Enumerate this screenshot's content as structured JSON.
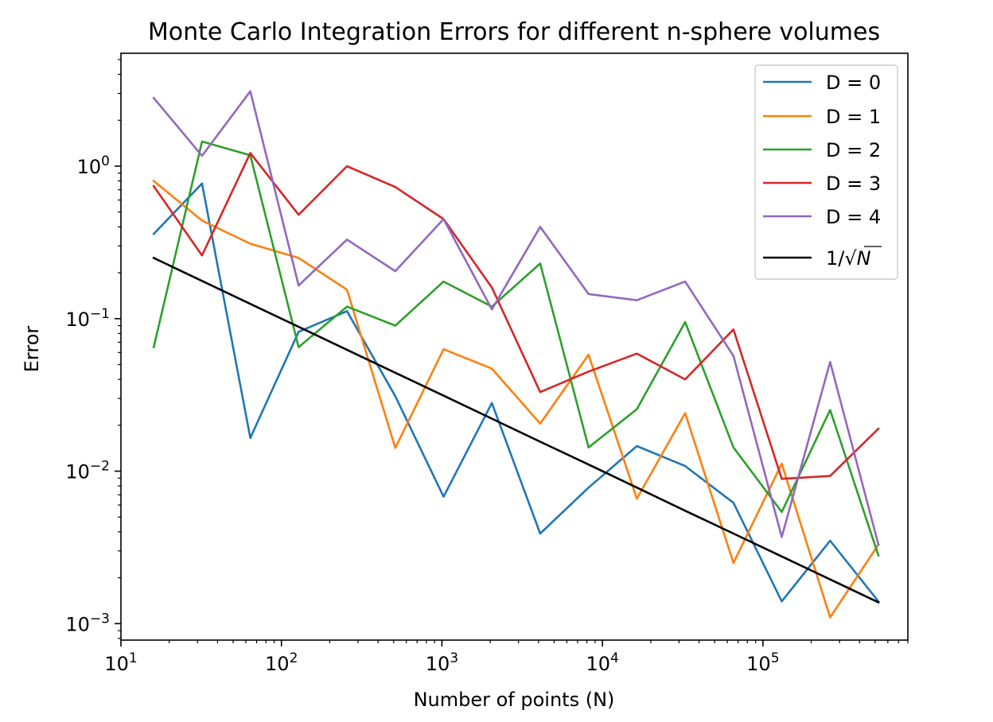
{
  "chart_data": {
    "type": "line",
    "title": "Monte Carlo Integration Errors for different n-sphere volumes",
    "xlabel": "Number of points (N)",
    "ylabel": "Error",
    "xscale": "log",
    "yscale": "log",
    "xlim": [
      10,
      800000
    ],
    "ylim": [
      0.00078,
      5.5
    ],
    "legend_location": "upper right",
    "grid": false,
    "x_ticks": [
      {
        "value": 10,
        "base": "10",
        "exp": "1"
      },
      {
        "value": 100,
        "base": "10",
        "exp": "2"
      },
      {
        "value": 1000,
        "base": "10",
        "exp": "3"
      },
      {
        "value": 10000,
        "base": "10",
        "exp": "4"
      },
      {
        "value": 100000,
        "base": "10",
        "exp": "5"
      }
    ],
    "y_ticks": [
      {
        "value": 1,
        "base": "10",
        "exp": "0"
      },
      {
        "value": 0.1,
        "base": "10",
        "exp": "−1"
      },
      {
        "value": 0.01,
        "base": "10",
        "exp": "−2"
      },
      {
        "value": 0.001,
        "base": "10",
        "exp": "−3"
      }
    ],
    "x": [
      16,
      32,
      64,
      128,
      256,
      512,
      1024,
      2048,
      4096,
      8192,
      16384,
      32768,
      65536,
      131072,
      262144,
      524288
    ],
    "series": [
      {
        "name": "D = 0",
        "color": "#1f77b4",
        "values": [
          0.36,
          0.77,
          0.0165,
          0.082,
          0.112,
          0.031,
          0.0068,
          0.028,
          0.0039,
          0.0078,
          0.0146,
          0.0108,
          0.0062,
          0.0014,
          0.0035,
          0.0014
        ]
      },
      {
        "name": "D = 1",
        "color": "#ff7f0e",
        "values": [
          0.8,
          0.44,
          0.31,
          0.25,
          0.155,
          0.0142,
          0.063,
          0.047,
          0.0205,
          0.058,
          0.0066,
          0.024,
          0.0025,
          0.0112,
          0.0011,
          0.0033
        ]
      },
      {
        "name": "D = 2",
        "color": "#2ca02c",
        "values": [
          0.065,
          1.45,
          1.18,
          0.065,
          0.12,
          0.09,
          0.175,
          0.12,
          0.23,
          0.0143,
          0.0255,
          0.095,
          0.0143,
          0.0054,
          0.0252,
          0.0028
        ]
      },
      {
        "name": "D = 3",
        "color": "#d62728",
        "values": [
          0.74,
          0.26,
          1.22,
          0.48,
          1.0,
          0.73,
          0.45,
          0.16,
          0.033,
          0.045,
          0.059,
          0.04,
          0.085,
          0.0089,
          0.0093,
          0.019
        ]
      },
      {
        "name": "D = 4",
        "color": "#9467bd",
        "values": [
          2.8,
          1.17,
          3.1,
          0.165,
          0.33,
          0.205,
          0.45,
          0.115,
          0.4,
          0.145,
          0.132,
          0.175,
          0.057,
          0.0037,
          0.052,
          0.0033
        ]
      },
      {
        "name": "1/√N",
        "legend_prefix": "1/",
        "legend_sqrt_arg": "N",
        "color": "#000000",
        "values": [
          0.25,
          0.1768,
          0.125,
          0.0884,
          0.0625,
          0.0442,
          0.03125,
          0.0221,
          0.0156,
          0.01105,
          0.0078,
          0.0055,
          0.0039,
          0.00276,
          0.00195,
          0.00138
        ]
      }
    ]
  }
}
